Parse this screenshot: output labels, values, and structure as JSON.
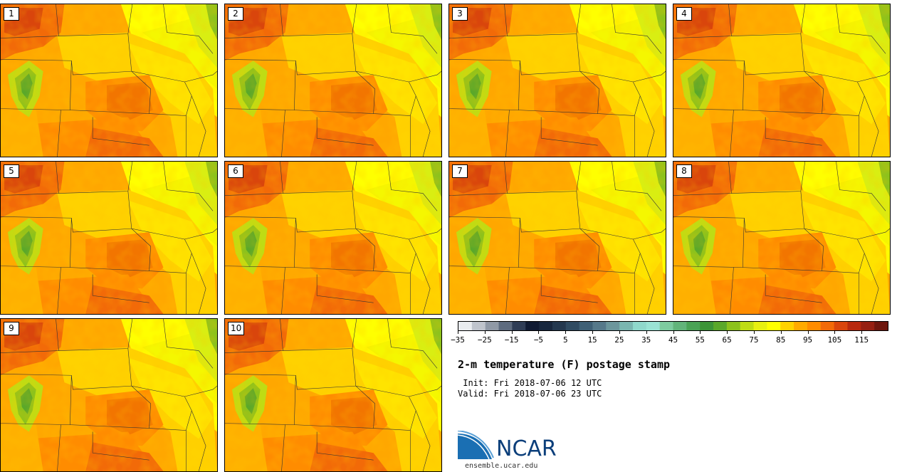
{
  "panels": [
    {
      "label": "1"
    },
    {
      "label": "2"
    },
    {
      "label": "3"
    },
    {
      "label": "4"
    },
    {
      "label": "5"
    },
    {
      "label": "6"
    },
    {
      "label": "7"
    },
    {
      "label": "8"
    },
    {
      "label": "9"
    },
    {
      "label": "10"
    }
  ],
  "colorbar": {
    "ticks": [
      "−35",
      "−25",
      "−15",
      "−5",
      "5",
      "15",
      "25",
      "35",
      "45",
      "55",
      "65",
      "75",
      "85",
      "95",
      "105",
      "115"
    ],
    "colors": [
      "#e9ecef",
      "#bfc4cc",
      "#9099a6",
      "#5e6b7f",
      "#2f3d56",
      "#101b33",
      "#18273e",
      "#24384f",
      "#304b62",
      "#3f6076",
      "#56798a",
      "#6c969c",
      "#7ab6b0",
      "#8fd8cb",
      "#9ae3d4",
      "#7ecb9f",
      "#62b47a",
      "#4aa356",
      "#3c9437",
      "#5aa82a",
      "#8cc21c",
      "#bfdc14",
      "#e8f010",
      "#ffff00",
      "#ffd200",
      "#ffaa00",
      "#ff8c00",
      "#f26a08",
      "#d9450c",
      "#b8290e",
      "#962012",
      "#6e170e"
    ]
  },
  "title": "2-m temperature (F) postage stamp",
  "init": " Init: Fri 2018-07-06 12 UTC",
  "valid": "Valid: Fri 2018-07-06 23 UTC",
  "logo": {
    "text": "NCAR",
    "colors": {
      "swoosh": "#1a6fb3",
      "text": "#0b3e7a"
    }
  },
  "site": "ensemble.ucar.edu"
}
